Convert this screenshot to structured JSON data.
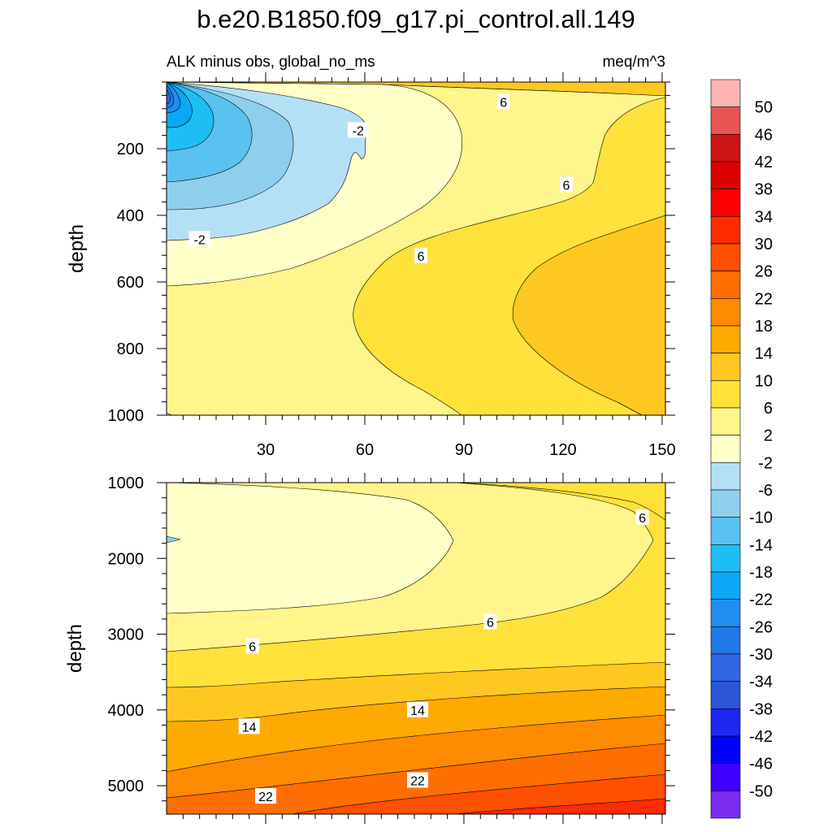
{
  "chart_data": {
    "type": "contour",
    "title": "b.e20.B1850.f09_g17.pi_control.all.149",
    "subtitle_left": "ALK minus obs, global_no_ms",
    "subtitle_right": "meq/m^3",
    "xlabel": "",
    "ylabel": "depth",
    "x_ticks": [
      "30",
      "60",
      "90",
      "120",
      "150"
    ],
    "xlim": [
      0,
      151
    ],
    "colorbar_levels": [
      "50",
      "46",
      "42",
      "38",
      "34",
      "30",
      "26",
      "22",
      "18",
      "14",
      "10",
      "6",
      "2",
      "-2",
      "-6",
      "-10",
      "-14",
      "-18",
      "-22",
      "-26",
      "-30",
      "-34",
      "-38",
      "-42",
      "-46",
      "-50"
    ],
    "colorbar_colors": [
      "#ffb4b4",
      "#e85555",
      "#cc1515",
      "#dc0000",
      "#ff0000",
      "#ff2a00",
      "#ff5000",
      "#ff6e00",
      "#ff8c00",
      "#ffaa00",
      "#ffc820",
      "#ffe13a",
      "#fff58a",
      "#ffffc8",
      "#b4e0f5",
      "#8ecfee",
      "#5ac2f0",
      "#1ebef5",
      "#0aa8f5",
      "#1e8ef0",
      "#1f78e6",
      "#3066e0",
      "#2d55d8",
      "#1e28f0",
      "#0000ff",
      "#4000ff",
      "#7a2cf0"
    ],
    "panels": [
      {
        "name": "upper",
        "y_ticks": [
          "200",
          "400",
          "600",
          "800",
          "1000"
        ],
        "ylim": [
          0,
          1000
        ],
        "contour_labels": [
          {
            "text": "6",
            "x": 102,
            "y": 60
          },
          {
            "text": "-2",
            "x": 58,
            "y": 145
          },
          {
            "text": "6",
            "x": 121,
            "y": 308
          },
          {
            "text": "-2",
            "x": 10,
            "y": 472
          },
          {
            "text": "6",
            "x": 77,
            "y": 522
          }
        ]
      },
      {
        "name": "lower",
        "y_ticks": [
          "1000",
          "2000",
          "3000",
          "4000",
          "5000"
        ],
        "ylim": [
          1000,
          5375
        ],
        "contour_labels": [
          {
            "text": "6",
            "x": 144,
            "y": 1460
          },
          {
            "text": "6",
            "x": 98,
            "y": 2840
          },
          {
            "text": "6",
            "x": 26,
            "y": 3160
          },
          {
            "text": "14",
            "x": 76,
            "y": 4000
          },
          {
            "text": "14",
            "x": 25,
            "y": 4220
          },
          {
            "text": "22",
            "x": 76,
            "y": 4930
          },
          {
            "text": "22",
            "x": 30,
            "y": 5140
          }
        ]
      }
    ]
  }
}
